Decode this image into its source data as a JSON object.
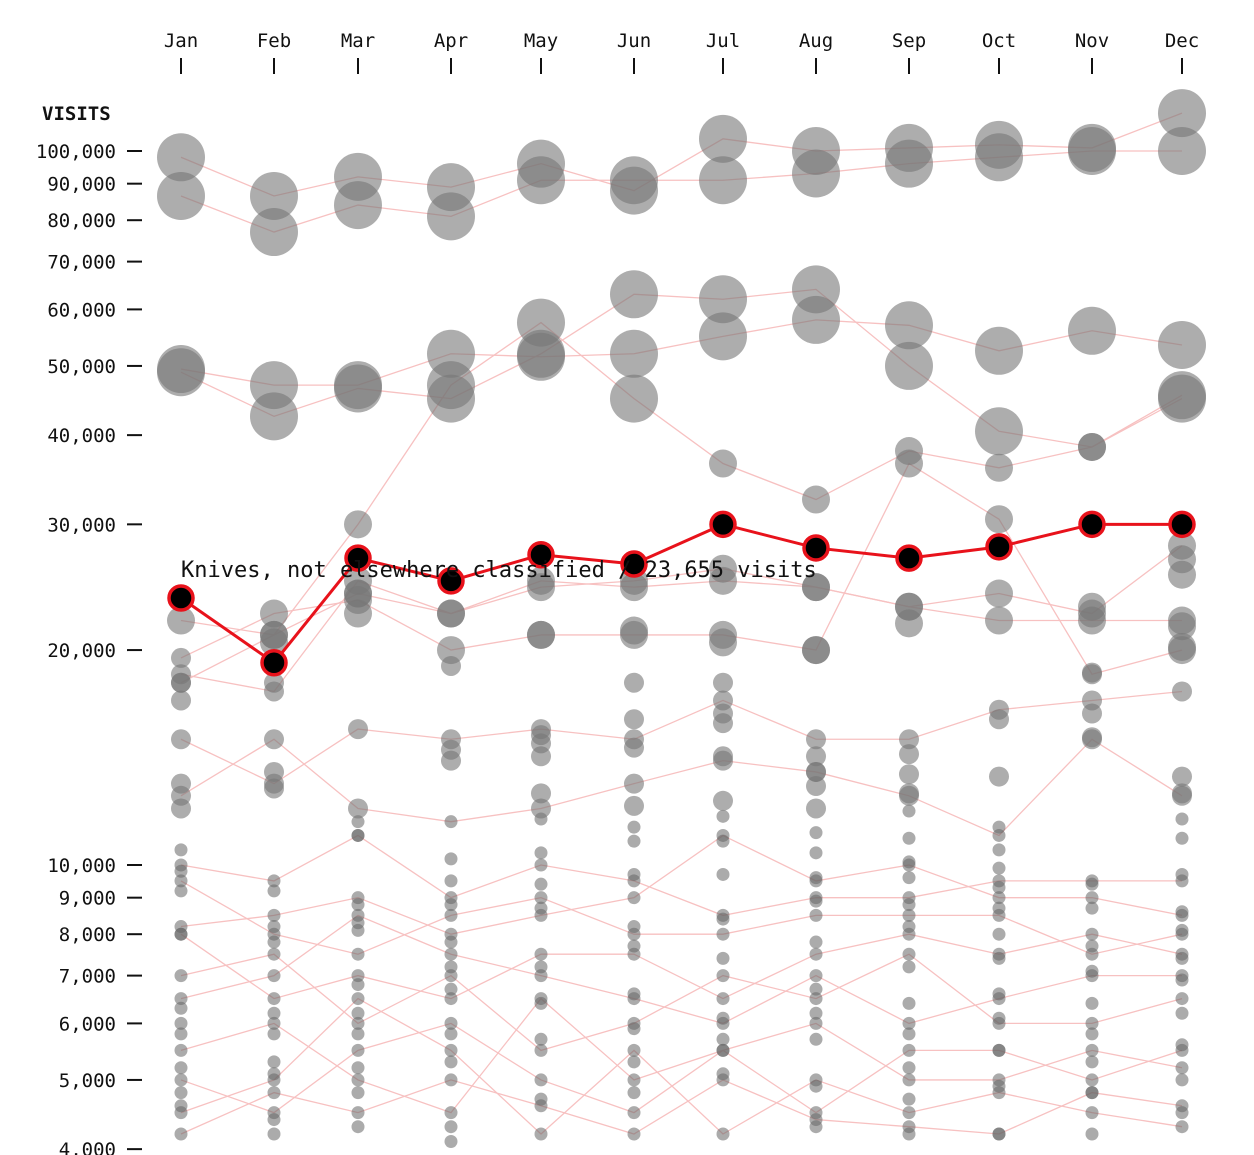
{
  "chart_data": {
    "type": "scatter",
    "title": "",
    "xlabel": "",
    "ylabel": "VISITS",
    "y_scale": "log",
    "ylim": [
      3900,
      125000
    ],
    "grid": false,
    "x_axis_position": "top",
    "categories": [
      "Jan",
      "Feb",
      "Mar",
      "Apr",
      "May",
      "Jun",
      "Jul",
      "Aug",
      "Sep",
      "Oct",
      "Nov",
      "Dec"
    ],
    "y_ticks": [
      {
        "value": 4000,
        "label": "4,000"
      },
      {
        "value": 5000,
        "label": "5,000"
      },
      {
        "value": 6000,
        "label": "6,000"
      },
      {
        "value": 7000,
        "label": "7,000"
      },
      {
        "value": 8000,
        "label": "8,000"
      },
      {
        "value": 9000,
        "label": "9,000"
      },
      {
        "value": 10000,
        "label": "10,000"
      },
      {
        "value": 20000,
        "label": "20,000"
      },
      {
        "value": 30000,
        "label": "30,000"
      },
      {
        "value": 40000,
        "label": "40,000"
      },
      {
        "value": 50000,
        "label": "50,000"
      },
      {
        "value": 60000,
        "label": "60,000"
      },
      {
        "value": 70000,
        "label": "70,000"
      },
      {
        "value": 80000,
        "label": "80,000"
      },
      {
        "value": 90000,
        "label": "90,000"
      },
      {
        "value": 100000,
        "label": "100,000"
      }
    ],
    "highlight": {
      "name": "Knives, not elsewhere classified",
      "values": [
        23655,
        19200,
        26900,
        25000,
        27200,
        26400,
        30000,
        27800,
        26900,
        27900,
        30000,
        30000
      ],
      "color": "#e8121b"
    },
    "tooltip": "Knives, not elsewhere classified / 23,655 visits",
    "background_series": [
      {
        "values": [
          98000,
          86500,
          92000,
          89000,
          96000,
          88000,
          104000,
          100000,
          101000,
          102000,
          101000,
          113000
        ]
      },
      {
        "values": [
          86500,
          77000,
          84000,
          81000,
          91000,
          91000,
          91000,
          93000,
          96000,
          98000,
          100000,
          100000
        ]
      },
      {
        "values": [
          49500,
          47000,
          47000,
          52000,
          51500,
          52000,
          55000,
          58000,
          57000,
          52500,
          56000,
          53500
        ]
      },
      {
        "values": [
          49000,
          42500,
          46500,
          45000,
          52000,
          63000,
          62000,
          64000,
          50000,
          40500,
          38500,
          45500
        ]
      },
      {
        "values": [
          22000,
          21000,
          30000,
          47000,
          57500,
          45000,
          36500,
          32500,
          38000,
          36000,
          38500,
          45000
        ]
      },
      {
        "values": [
          18500,
          17500,
          25000,
          22500,
          25000,
          24500,
          25000,
          24500,
          23000,
          22000,
          22000,
          22000
        ]
      },
      {
        "values": [
          19500,
          22500,
          23500,
          20000,
          21000,
          21000,
          21000,
          20000,
          36500,
          30500,
          18500,
          20000
        ]
      },
      {
        "values": [
          18000,
          21000,
          24000,
          22500,
          24500,
          25000,
          26000,
          24500,
          23000,
          24000,
          22500,
          28000
        ]
      },
      {
        "values": [
          15000,
          13000,
          15500,
          15000,
          15500,
          15000,
          17000,
          15000,
          15000,
          16500,
          17000,
          17500
        ]
      },
      {
        "values": [
          12500,
          15000,
          12000,
          11500,
          12000,
          13000,
          14000,
          13500,
          12500,
          11000,
          15000,
          12500
        ]
      },
      {
        "values": [
          10000,
          9500,
          11000,
          9000,
          10000,
          9500,
          8500,
          9000,
          9000,
          9500,
          9500,
          9500
        ]
      },
      {
        "values": [
          8200,
          8500,
          9000,
          8000,
          8500,
          9000,
          11000,
          9500,
          10000,
          9000,
          9000,
          8500
        ]
      },
      {
        "values": [
          6500,
          7000,
          8500,
          7500,
          7000,
          6500,
          6000,
          7000,
          6000,
          6500,
          7000,
          7000
        ]
      },
      {
        "values": [
          5000,
          4500,
          5500,
          6000,
          5000,
          4500,
          5500,
          6000,
          5000,
          5000,
          5500,
          5200
        ]
      },
      {
        "values": [
          4500,
          5000,
          6500,
          5500,
          4200,
          5500,
          4200,
          5000,
          4500,
          4800,
          4500,
          4300
        ]
      },
      {
        "values": [
          5500,
          6000,
          5000,
          4500,
          6500,
          5000,
          5500,
          4500,
          5500,
          5500,
          5000,
          5500
        ]
      },
      {
        "values": [
          7000,
          7500,
          6000,
          7000,
          5500,
          6000,
          7000,
          6500,
          7500,
          6000,
          6000,
          6500
        ]
      },
      {
        "values": [
          8000,
          6500,
          7000,
          6500,
          7500,
          7500,
          6500,
          7500,
          8000,
          7500,
          8000,
          7500
        ]
      },
      {
        "values": [
          9500,
          8000,
          7500,
          8500,
          9000,
          8000,
          8000,
          8500,
          8500,
          8500,
          7500,
          8000
        ]
      },
      {
        "values": [
          4200,
          4800,
          4500,
          5000,
          4600,
          4200,
          5000,
          4400,
          4300,
          4200,
          4800,
          4600
        ]
      }
    ],
    "extra_points": [
      {
        "month": "Jan",
        "values": [
          13000,
          12000,
          10500,
          9800,
          9200,
          8000,
          6300,
          6000,
          5800,
          5200,
          4800,
          4600,
          17000,
          18000
        ]
      },
      {
        "month": "Feb",
        "values": [
          13500,
          12800,
          9200,
          8200,
          7800,
          6200,
          5800,
          5300,
          5100,
          4400,
          4200,
          18000,
          20500
        ]
      },
      {
        "month": "Mar",
        "values": [
          11500,
          11000,
          8800,
          8300,
          8100,
          6800,
          6200,
          5800,
          5200,
          4800,
          4300,
          22500,
          24000
        ]
      },
      {
        "month": "Apr",
        "values": [
          14500,
          14000,
          10200,
          9500,
          8800,
          7800,
          7200,
          6700,
          5800,
          5300,
          4300,
          4100,
          19000
        ]
      },
      {
        "month": "May",
        "values": [
          15200,
          14800,
          14200,
          12600,
          11600,
          10400,
          9400,
          8700,
          7200,
          6400,
          5700,
          4700,
          21000
        ]
      },
      {
        "month": "Jun",
        "values": [
          18000,
          16000,
          14600,
          12100,
          11300,
          10800,
          9700,
          8200,
          7700,
          6600,
          5900,
          5300,
          4800,
          21300
        ]
      },
      {
        "month": "Jul",
        "values": [
          18000,
          16300,
          15800,
          14200,
          12300,
          11700,
          10800,
          9700,
          8400,
          7400,
          6100,
          5700,
          5100,
          20500
        ]
      },
      {
        "month": "Aug",
        "values": [
          14200,
          13500,
          12900,
          12000,
          11100,
          10400,
          9600,
          8900,
          7800,
          6700,
          6200,
          5700,
          4900,
          4300,
          20000
        ]
      },
      {
        "month": "Sep",
        "values": [
          14300,
          13400,
          12600,
          11900,
          10900,
          10100,
          9600,
          8800,
          8200,
          7200,
          6400,
          5800,
          5200,
          4700,
          4200,
          21800
        ]
      },
      {
        "month": "Oct",
        "values": [
          16000,
          13300,
          11300,
          10500,
          9900,
          9300,
          8700,
          8000,
          7400,
          6600,
          6100,
          5500,
          4900,
          4200
        ]
      },
      {
        "month": "Nov",
        "values": [
          16300,
          15100,
          9400,
          8700,
          7700,
          7100,
          6400,
          5800,
          5300,
          4800,
          4200,
          18600,
          23000
        ]
      },
      {
        "month": "Dec",
        "values": [
          13300,
          12600,
          11600,
          10900,
          9700,
          8600,
          8100,
          7400,
          6900,
          6200,
          5600,
          5000,
          4500,
          20200,
          21600,
          25500,
          26800
        ]
      }
    ],
    "colors": {
      "bubble": "#777777",
      "small_dot": "#666666",
      "connector": "#f7c1c1",
      "highlight": "#e8121b",
      "highlight_fill": "#000000"
    }
  }
}
